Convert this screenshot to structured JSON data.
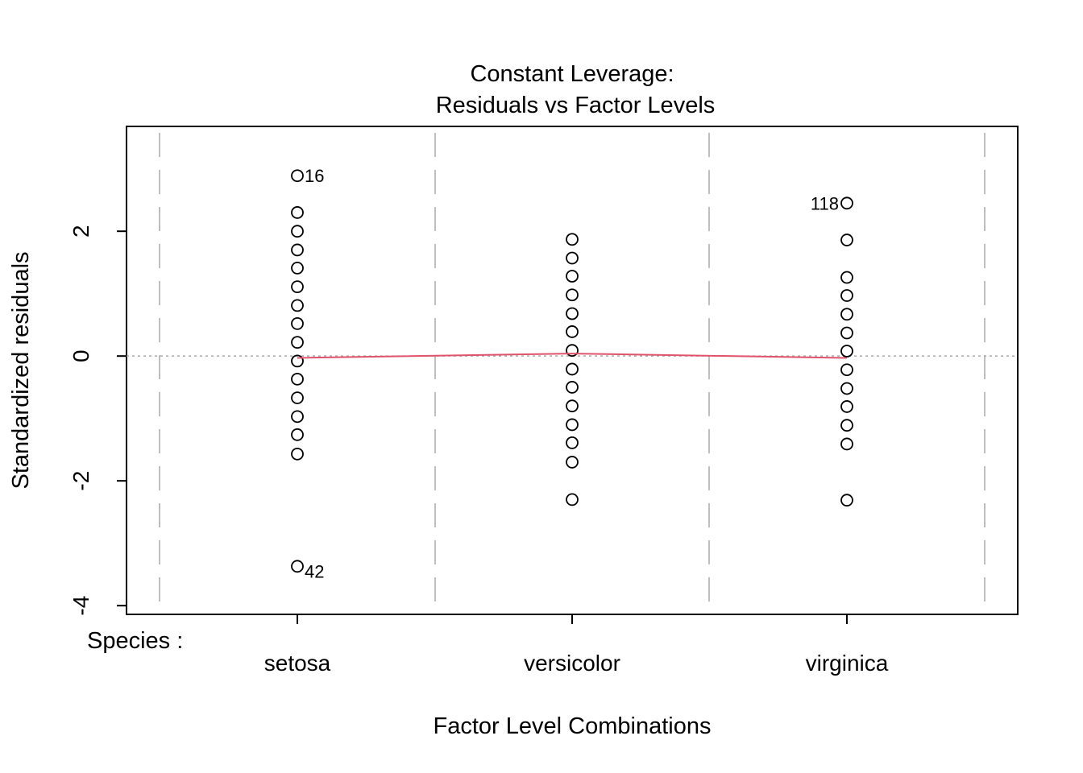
{
  "chart_data": {
    "type": "strip",
    "title": "Constant Leverage:",
    "subtitle": "Residuals vs Factor Levels",
    "x_label": "Factor Level Combinations",
    "y_label": "Standardized residuals",
    "factor_label": "Species :",
    "categories": [
      "setosa",
      "versicolor",
      "virginica"
    ],
    "groups": [
      {
        "values": [
          2.89,
          2.3,
          2.0,
          1.7,
          1.41,
          1.11,
          0.81,
          0.52,
          0.22,
          -0.08,
          -0.37,
          -0.67,
          -0.97,
          -1.26,
          -1.57,
          -3.37
        ],
        "point_labels": [
          "16",
          null,
          null,
          null,
          null,
          null,
          null,
          null,
          null,
          null,
          null,
          null,
          null,
          null,
          null,
          "42"
        ]
      },
      {
        "values": [
          1.87,
          1.57,
          1.28,
          0.98,
          0.68,
          0.39,
          0.09,
          -0.21,
          -0.5,
          -0.8,
          -1.1,
          -1.39,
          -1.7,
          -2.3
        ],
        "point_labels": [
          null,
          null,
          null,
          null,
          null,
          null,
          null,
          null,
          null,
          null,
          null,
          null,
          null,
          null
        ]
      },
      {
        "values": [
          2.45,
          1.86,
          1.26,
          0.97,
          0.67,
          0.37,
          0.08,
          -0.22,
          -0.52,
          -0.81,
          -1.11,
          -1.41,
          -2.31
        ],
        "point_labels": [
          "118",
          null,
          null,
          null,
          null,
          null,
          null,
          null,
          null,
          null,
          null,
          null,
          null
        ]
      }
    ],
    "fit_line": {
      "color": "#df536b",
      "values": [
        -0.03,
        0.04,
        -0.03
      ]
    },
    "reference_line": 0,
    "ylim": [
      -4.14,
      3.68
    ],
    "yticks": [
      -4,
      -2,
      0,
      2
    ]
  }
}
